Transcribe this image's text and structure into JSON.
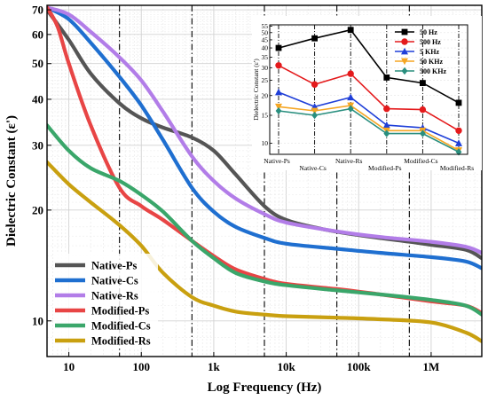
{
  "chart_data": [
    {
      "type": "line",
      "xlabel": "Log Frequency (Hz)",
      "ylabel": "Dielectric Constant (ε')",
      "x_scale": "log",
      "y_scale": "log",
      "xlim": [
        5,
        5000000
      ],
      "ylim": [
        8,
        72
      ],
      "x_ticks": [
        10,
        100,
        1000,
        10000,
        100000,
        1000000
      ],
      "x_tick_labels": [
        "10",
        "100",
        "1k",
        "10k",
        "100k",
        "1M"
      ],
      "y_ticks": [
        10,
        20,
        30,
        40,
        50,
        60,
        70
      ],
      "y_tick_labels": [
        "10",
        "20",
        "30",
        "40",
        "50",
        "60",
        "70"
      ],
      "grid": true,
      "legend_position": "bottom-left",
      "reference_lines_x": [
        50,
        500,
        5000,
        50000,
        500000
      ],
      "series": [
        {
          "name": "Native-Ps",
          "color": "#555555",
          "points": [
            [
              5,
              70
            ],
            [
              10,
              58
            ],
            [
              20,
              47
            ],
            [
              50,
              39
            ],
            [
              100,
              35.5
            ],
            [
              200,
              33.5
            ],
            [
              500,
              31.5
            ],
            [
              1000,
              29
            ],
            [
              2000,
              25
            ],
            [
              5000,
              20.5
            ],
            [
              10000,
              18.8
            ],
            [
              30000,
              17.8
            ],
            [
              100000,
              17.1
            ],
            [
              500000,
              16.4
            ],
            [
              1000000,
              16.1
            ],
            [
              3000000,
              15.6
            ],
            [
              5000000,
              14.8
            ]
          ]
        },
        {
          "name": "Native-Cs",
          "color": "#1f6fd0",
          "points": [
            [
              5,
              71
            ],
            [
              10,
              66
            ],
            [
              20,
              57
            ],
            [
              50,
              46
            ],
            [
              100,
              38.5
            ],
            [
              200,
              31
            ],
            [
              500,
              23
            ],
            [
              1000,
              19.8
            ],
            [
              2000,
              18
            ],
            [
              5000,
              16.8
            ],
            [
              10000,
              16.2
            ],
            [
              50000,
              15.7
            ],
            [
              200000,
              15.3
            ],
            [
              1000000,
              14.9
            ],
            [
              3000000,
              14.5
            ],
            [
              5000000,
              13.9
            ]
          ]
        },
        {
          "name": "Native-Rs",
          "color": "#b27de8",
          "points": [
            [
              5,
              71
            ],
            [
              10,
              68
            ],
            [
              20,
              61
            ],
            [
              50,
              52
            ],
            [
              100,
              45
            ],
            [
              200,
              37
            ],
            [
              500,
              28
            ],
            [
              1000,
              24
            ],
            [
              2000,
              21.5
            ],
            [
              5000,
              19.5
            ],
            [
              10000,
              18.5
            ],
            [
              50000,
              17.5
            ],
            [
              200000,
              16.9
            ],
            [
              1000000,
              16.4
            ],
            [
              3000000,
              15.9
            ],
            [
              5000000,
              15.3
            ]
          ]
        },
        {
          "name": "Modified-Ps",
          "color": "#e84545",
          "points": [
            [
              5,
              71
            ],
            [
              7,
              63
            ],
            [
              10,
              50
            ],
            [
              20,
              34
            ],
            [
              50,
              23
            ],
            [
              100,
              20.5
            ],
            [
              200,
              18.8
            ],
            [
              500,
              16.5
            ],
            [
              1000,
              15
            ],
            [
              2000,
              13.8
            ],
            [
              5000,
              13
            ],
            [
              10000,
              12.6
            ],
            [
              50000,
              12.2
            ],
            [
              200000,
              11.8
            ],
            [
              1000000,
              11.3
            ],
            [
              3000000,
              11
            ],
            [
              5000000,
              10.5
            ]
          ]
        },
        {
          "name": "Modified-Cs",
          "color": "#3aa66a",
          "points": [
            [
              5,
              34
            ],
            [
              10,
              29
            ],
            [
              20,
              26
            ],
            [
              50,
              24
            ],
            [
              100,
              22
            ],
            [
              200,
              19.8
            ],
            [
              500,
              16.5
            ],
            [
              1000,
              14.8
            ],
            [
              2000,
              13.5
            ],
            [
              5000,
              12.8
            ],
            [
              10000,
              12.5
            ],
            [
              50000,
              12.1
            ],
            [
              200000,
              11.8
            ],
            [
              1000000,
              11.4
            ],
            [
              3000000,
              11
            ],
            [
              5000000,
              10.4
            ]
          ]
        },
        {
          "name": "Modified-Rs",
          "color": "#c9a010",
          "points": [
            [
              5,
              27
            ],
            [
              10,
              23.5
            ],
            [
              20,
              21
            ],
            [
              50,
              18.2
            ],
            [
              100,
              16
            ],
            [
              200,
              13.5
            ],
            [
              500,
              11.6
            ],
            [
              1000,
              11
            ],
            [
              2000,
              10.6
            ],
            [
              5000,
              10.4
            ],
            [
              10000,
              10.3
            ],
            [
              50000,
              10.2
            ],
            [
              200000,
              10.1
            ],
            [
              1000000,
              9.9
            ],
            [
              3000000,
              9.3
            ],
            [
              5000000,
              8.8
            ]
          ]
        }
      ]
    },
    {
      "type": "line",
      "ylabel": "Dielectric Constant (ε')",
      "y_scale": "log",
      "ylim": [
        8.5,
        56
      ],
      "y_ticks": [
        10,
        15,
        20,
        25,
        30,
        35,
        40,
        45,
        50,
        55
      ],
      "y_tick_labels": [
        "10",
        "15",
        "20",
        "25",
        "30",
        "35",
        "40",
        "45",
        "50",
        "55"
      ],
      "categories": [
        "Native-Ps",
        "Native-Cs",
        "Native-Rs",
        "Modified-Ps",
        "Modified-Cs",
        "Modified-Rs"
      ],
      "legend_position": "top-right",
      "series": [
        {
          "name": "50 Hz",
          "color": "#000000",
          "marker": "square",
          "values": [
            40,
            46,
            52,
            26,
            24,
            18
          ]
        },
        {
          "name": "500 Hz",
          "color": "#e41a1c",
          "marker": "circle",
          "values": [
            31,
            23.5,
            27.5,
            16.5,
            16.3,
            12
          ]
        },
        {
          "name": "5 KHz",
          "color": "#1f3fd8",
          "marker": "triangle",
          "values": [
            21,
            17,
            19.5,
            13,
            12.5,
            10
          ]
        },
        {
          "name": "50 KHz",
          "color": "#f5a623",
          "marker": "triangle-down",
          "values": [
            17,
            16,
            17.3,
            12,
            12,
            9
          ]
        },
        {
          "name": "500 KHz",
          "color": "#2a8f7f",
          "marker": "diamond",
          "values": [
            16,
            15,
            16.5,
            11.5,
            11.5,
            8.8
          ]
        }
      ]
    }
  ]
}
